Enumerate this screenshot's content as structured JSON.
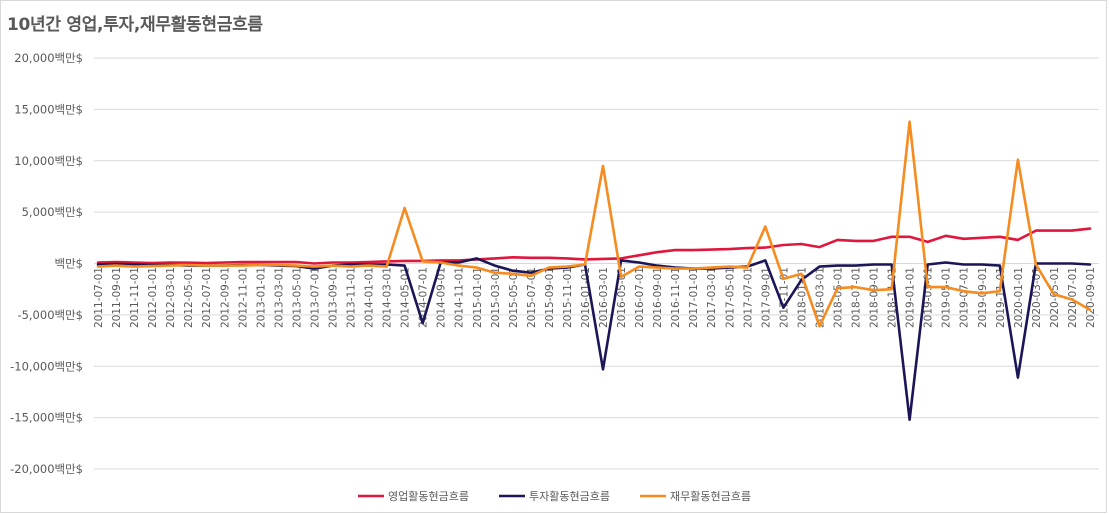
{
  "chart_data": {
    "type": "line",
    "title": "10년간 영업,투자,재무활동현금흐름",
    "xlabel": "",
    "ylabel": "",
    "ylim": [
      -20000,
      20000
    ],
    "y_ticks": [
      20000,
      15000,
      10000,
      5000,
      0,
      -5000,
      -10000,
      -15000,
      -20000
    ],
    "y_tick_labels": [
      "20,000백만$",
      "15,000백만$",
      "10,000백만$",
      "5,000백만$",
      "백만$",
      "-5,000백만$",
      "-10,000백만$",
      "-15,000백만$",
      "-20,000백만$"
    ],
    "grid": true,
    "legend_position": "bottom",
    "x": [
      "2011-07-01",
      "2011-09-01",
      "2011-11-01",
      "2012-01-01",
      "2012-03-01",
      "2012-05-01",
      "2012-07-01",
      "2012-09-01",
      "2012-11-01",
      "2013-01-01",
      "2013-03-01",
      "2013-05-01",
      "2013-07-01",
      "2013-09-01",
      "2013-11-01",
      "2014-01-01",
      "2014-03-01",
      "2014-05-01",
      "2014-07-01",
      "2014-09-01",
      "2014-11-01",
      "2015-01-01",
      "2015-03-01",
      "2015-05-01",
      "2015-07-01",
      "2015-09-01",
      "2015-11-01",
      "2016-01-01",
      "2016-03-01",
      "2016-05-01",
      "2016-07-01",
      "2016-09-01",
      "2016-11-01",
      "2017-01-01",
      "2017-03-01",
      "2017-05-01",
      "2017-07-01",
      "2017-09-01",
      "2017-11-01",
      "2018-01-01",
      "2018-03-01",
      "2018-05-01",
      "2018-07-01",
      "2018-09-01",
      "2018-11-01",
      "2019-01-01",
      "2019-03-01",
      "2019-05-01",
      "2019-07-01",
      "2019-09-01",
      "2019-11-01",
      "2020-01-01",
      "2020-03-01",
      "2020-05-01",
      "2020-07-01",
      "2020-09-01"
    ],
    "x_tick_labels": [
      "2011-07-01",
      "2011-09-01",
      "2011-11-01",
      "2012-01-01",
      "2012-03-01",
      "2012-05-01",
      "2012-07-01",
      "2012-09-01",
      "2012-11-01",
      "2013-01-01",
      "2013-03-01",
      "2013-05-01",
      "2013-07-01",
      "2013-09-01",
      "2013-11-01",
      "2014-01-01",
      "2014-03-01",
      "2014-05-01",
      "2014-07-01",
      "2014-09-01",
      "2014-11-01",
      "2015-01-01",
      "2015-03-01",
      "2015-05-01",
      "2015-07-01",
      "2015-09-01",
      "2015-11-01",
      "2016-01-01",
      "2016-03-01",
      "2016-05-01",
      "2016-07-01",
      "2016-09-01",
      "2016-11-01",
      "2017-01-01",
      "2017-03-01",
      "2017-05-01",
      "2017-07-01",
      "2017-09-01",
      "2017-11-01",
      "2018-01-01",
      "2018-03-01",
      "2018-05-01",
      "2018-07-01",
      "2018-09-01",
      "2018-11-01",
      "2019-01-01",
      "2019-03-01",
      "2019-05-01",
      "2019-07-01",
      "2019-09-01",
      "2019-11-01",
      "2020-01-01",
      "2020-03-01",
      "2020-05-01",
      "2020-07-01",
      "2020-09-01"
    ],
    "series": [
      {
        "name": "영업활동현금흐름",
        "color": "#e0173d",
        "values": [
          100,
          150,
          100,
          50,
          100,
          80,
          50,
          100,
          150,
          150,
          150,
          150,
          0,
          100,
          100,
          150,
          200,
          250,
          250,
          300,
          300,
          400,
          500,
          600,
          550,
          550,
          500,
          400,
          450,
          500,
          800,
          1100,
          1300,
          1300,
          1350,
          1400,
          1500,
          1550,
          1800,
          1900,
          1600,
          2300,
          2200,
          2200,
          2600,
          2600,
          2100,
          2700,
          2400,
          2500,
          2600,
          2300,
          3200,
          3200,
          3200,
          3400
        ]
      },
      {
        "name": "투자활동현금흐름",
        "color": "#1a1657",
        "values": [
          -100,
          -50,
          -100,
          -150,
          -150,
          -200,
          -200,
          -200,
          -150,
          -150,
          -200,
          -250,
          -500,
          -200,
          -100,
          -100,
          -100,
          -200,
          -5800,
          100,
          100,
          500,
          -200,
          -700,
          -900,
          -500,
          -400,
          -100,
          -10300,
          300,
          100,
          -200,
          -400,
          -500,
          -500,
          -400,
          -300,
          300,
          -4300,
          -1600,
          -300,
          -200,
          -200,
          -100,
          -100,
          -15200,
          -100,
          100,
          -100,
          -100,
          -200,
          -11100,
          0,
          0,
          0,
          -100
        ]
      },
      {
        "name": "재무활동현금흐름",
        "color": "#f68b1f",
        "values": [
          -300,
          -200,
          -300,
          -250,
          -200,
          -150,
          -200,
          -200,
          -200,
          -150,
          -150,
          -200,
          -300,
          -200,
          -300,
          -200,
          -300,
          5400,
          200,
          100,
          -200,
          -400,
          -900,
          -1000,
          -1200,
          -400,
          -300,
          -100,
          9500,
          -1300,
          -300,
          -400,
          -500,
          -500,
          -400,
          -300,
          -400,
          3600,
          -1500,
          -1000,
          -6100,
          -2400,
          -2300,
          -2600,
          -2500,
          13800,
          -2300,
          -2300,
          -2700,
          -2900,
          -2700,
          10100,
          -100,
          -3000,
          -3500,
          -4500
        ]
      }
    ]
  }
}
